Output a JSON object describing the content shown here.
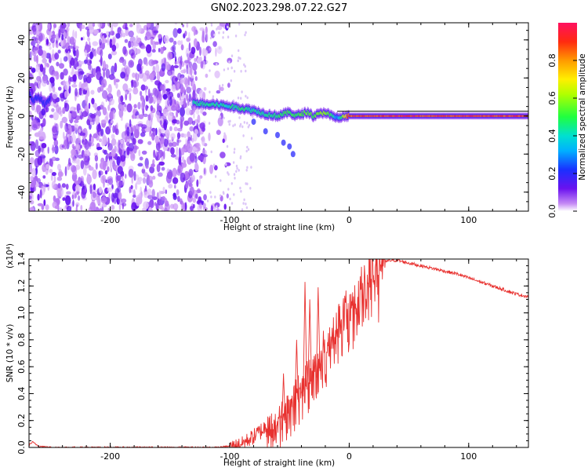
{
  "figure_title": "GN02.2023.298.07.22.G27",
  "colors": {
    "snr_line": "#e8312f",
    "scatter_low": "#c9a8f5",
    "scatter_high": "#6a12ef",
    "axis": "#000000"
  },
  "chart_data": [
    {
      "type": "heatmap",
      "title": "",
      "xlabel": "Height of straight line (km)",
      "ylabel": "Frequency (Hz)",
      "xlim": [
        -268,
        150
      ],
      "ylim": [
        -50,
        49
      ],
      "xticks": [
        -200,
        -100,
        0,
        100
      ],
      "xtick_labels": [
        "-200",
        "-100",
        "0",
        "100"
      ],
      "yticks": [
        -40,
        -20,
        0,
        20,
        40
      ],
      "ytick_labels": [
        "-40",
        "-20",
        "0",
        "20",
        "40"
      ],
      "grid": false,
      "colormap": "rainbow",
      "colorbar": {
        "label": "Normalized spectral amplitude",
        "range": [
          0.0,
          1.0
        ],
        "ticks": [
          0.0,
          0.2,
          0.4,
          0.6,
          0.8
        ],
        "tick_labels": [
          "0.0",
          "0.2",
          "0.4",
          "0.6",
          "0.8"
        ]
      },
      "noise_region": {
        "x_range": [
          -268,
          -120
        ],
        "freq_range": [
          -50,
          49
        ],
        "amplitude_range": [
          0.02,
          0.14
        ]
      },
      "ridge": {
        "x": [
          -268,
          -265,
          -260,
          -255,
          -250,
          -130,
          -120,
          -110,
          -100,
          -90,
          -80,
          -70,
          -60,
          -55,
          -50,
          -45,
          -40,
          -35,
          -30,
          -25,
          -20,
          -15,
          -10,
          0,
          50,
          100,
          150
        ],
        "freq": [
          12,
          8,
          10,
          6,
          9,
          7,
          6,
          6,
          5,
          4,
          3,
          1,
          0,
          1,
          2,
          0,
          1,
          2,
          0,
          1,
          2,
          0,
          -1,
          0,
          0,
          0,
          0
        ],
        "amplitude": [
          0.2,
          0.2,
          0.2,
          0.2,
          0.2,
          0.45,
          0.5,
          0.45,
          0.45,
          0.5,
          0.45,
          0.45,
          0.5,
          0.5,
          0.55,
          0.5,
          0.55,
          0.6,
          0.55,
          0.6,
          0.65,
          0.5,
          0.3,
          0.93,
          0.95,
          0.93,
          0.93
        ]
      },
      "branch": {
        "x": [
          -80,
          -70,
          -60,
          -55,
          -50,
          -47
        ],
        "freq": [
          -3,
          -8,
          -10,
          -14,
          -16,
          -20
        ],
        "amplitude": 0.2
      }
    },
    {
      "type": "line",
      "title": "",
      "xlabel": "Height of straight line (km)",
      "ylabel": "SNR (10 * v/v)",
      "y_scale_label": "(x10⁴)",
      "xlim": [
        -268,
        150
      ],
      "ylim": [
        0.0,
        1.4
      ],
      "xticks": [
        -200,
        -100,
        0,
        100
      ],
      "xtick_labels": [
        "-200",
        "-100",
        "0",
        "100"
      ],
      "yticks": [
        0.0,
        0.2,
        0.4,
        0.6,
        0.8,
        1.0,
        1.2,
        1.4
      ],
      "ytick_labels": [
        "0.0",
        "0.2",
        "0.4",
        "0.6",
        "0.8",
        "1.0",
        "1.2",
        "1.4"
      ],
      "grid": false,
      "series": [
        {
          "x": [
            -268,
            -265,
            -260,
            -250,
            -220,
            -200,
            -180,
            -150,
            -120,
            -110,
            -100,
            -90,
            -80,
            -70,
            -60,
            -55,
            -50,
            -45,
            -40,
            -35,
            -30,
            -25,
            -20,
            -15,
            -10,
            -5,
            0,
            5,
            10,
            15,
            20,
            25,
            30,
            35,
            40,
            45,
            50,
            60,
            70,
            80,
            90,
            100,
            110,
            120,
            130,
            140,
            150
          ],
          "y": [
            0.02,
            0.04,
            0.01,
            0.0,
            0.0,
            0.0,
            0.0,
            0.0,
            0.0,
            0.0,
            0.01,
            0.03,
            0.08,
            0.15,
            0.22,
            0.28,
            0.35,
            0.42,
            0.5,
            0.55,
            0.62,
            0.68,
            0.78,
            0.85,
            0.92,
            1.0,
            1.05,
            1.12,
            1.2,
            1.28,
            1.33,
            1.36,
            1.38,
            1.39,
            1.39,
            1.38,
            1.37,
            1.35,
            1.33,
            1.31,
            1.29,
            1.26,
            1.23,
            1.2,
            1.17,
            1.14,
            1.12
          ]
        }
      ],
      "peaks": [
        {
          "x": -37,
          "y": 1.23
        },
        {
          "x": -33,
          "y": 1.1
        },
        {
          "x": -26,
          "y": 1.19
        },
        {
          "x": -44,
          "y": 0.8
        },
        {
          "x": -55,
          "y": 0.55
        }
      ]
    }
  ]
}
